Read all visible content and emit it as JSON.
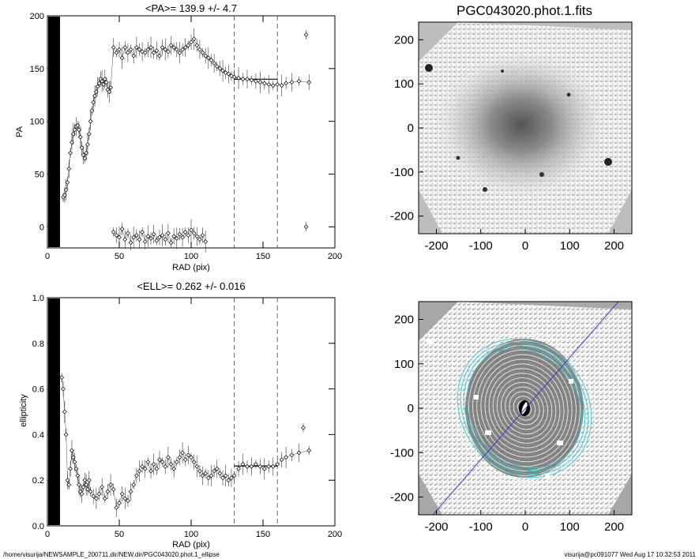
{
  "footer": {
    "path": "/home/visurija/NEWSAMPLE_200711.dir/NEW.dir/PGC043020.phot.1_ellipse",
    "stamp": "visurija@pc091077  Wed Aug 17 10:32:53 2011"
  },
  "chart_data": [
    {
      "type": "scatter",
      "title": "<PA>= 139.9 +/-   4.7",
      "xlabel": "RAD (pix)",
      "ylabel": "PA",
      "xlim": [
        0,
        200
      ],
      "ylim": [
        -20,
        200
      ],
      "xticks": [
        "0",
        "50",
        "100",
        "150",
        "200"
      ],
      "yticks": [
        "0",
        "50",
        "100",
        "150",
        "200"
      ],
      "ytick_values": [
        0,
        50,
        100,
        150,
        200
      ],
      "vlines": [
        130,
        160
      ],
      "mean_line": {
        "x": [
          130,
          160
        ],
        "y": 139.9
      },
      "series": [
        {
          "x": [
            11,
            12,
            13,
            14,
            15,
            16,
            17,
            18,
            19,
            20,
            21,
            22,
            23,
            24,
            25,
            26,
            27,
            28,
            29,
            30,
            31,
            32,
            33,
            34,
            35,
            36,
            37,
            38,
            39,
            40,
            41,
            42,
            43,
            44,
            46,
            48,
            50,
            52,
            54,
            56,
            58,
            60,
            62,
            64,
            66,
            68,
            70,
            72,
            74,
            76,
            78,
            80,
            82,
            84,
            86,
            88,
            90,
            92,
            94,
            96,
            98,
            100,
            102,
            104,
            106,
            108,
            110,
            112,
            114,
            116,
            118,
            120,
            122,
            124,
            126,
            128,
            130,
            133,
            136,
            139,
            142,
            145,
            148,
            151,
            154,
            157,
            160,
            163,
            166,
            170,
            175,
            182
          ],
          "y": [
            28,
            30,
            35,
            42,
            55,
            70,
            80,
            88,
            92,
            95,
            96,
            92,
            85,
            75,
            68,
            65,
            70,
            78,
            88,
            100,
            110,
            118,
            124,
            128,
            133,
            136,
            140,
            138,
            135,
            140,
            137,
            130,
            128,
            132,
            170,
            165,
            168,
            160,
            170,
            165,
            168,
            162,
            170,
            168,
            166,
            165,
            168,
            170,
            165,
            167,
            162,
            170,
            168,
            166,
            172,
            170,
            168,
            165,
            168,
            170,
            172,
            175,
            178,
            172,
            168,
            165,
            162,
            160,
            158,
            155,
            152,
            150,
            148,
            146,
            145,
            143,
            142,
            141,
            140,
            140,
            139,
            138,
            137,
            136,
            135,
            134,
            135,
            134,
            136,
            137,
            138,
            137
          ]
        },
        {
          "x": [
            46,
            48,
            50,
            52,
            54,
            56,
            58,
            60,
            62,
            64,
            66,
            68,
            70,
            72,
            74,
            76,
            78,
            80,
            82,
            84,
            86,
            88,
            90,
            92,
            94,
            96,
            98,
            100,
            102,
            104,
            106,
            108,
            110
          ],
          "y": [
            -5,
            -8,
            -10,
            -2,
            -12,
            -6,
            -15,
            -10,
            -8,
            -12,
            -5,
            -14,
            -9,
            -11,
            -7,
            -13,
            -10,
            -8,
            -12,
            -6,
            -15,
            -9,
            -11,
            -7,
            -10,
            -5,
            -8,
            -3,
            -6,
            -9,
            -12,
            -8,
            -14
          ]
        },
        {
          "x": [
            180
          ],
          "y": [
            182
          ]
        },
        {
          "x": [
            180
          ],
          "y": [
            0
          ]
        }
      ]
    },
    {
      "type": "scatter",
      "title": "<ELL>= 0.262 +/-  0.016",
      "xlabel": "RAD (pix)",
      "ylabel": "ellipticity",
      "xlim": [
        0,
        200
      ],
      "ylim": [
        0,
        1
      ],
      "xticks": [
        "0",
        "50",
        "100",
        "150",
        "200"
      ],
      "yticks": [
        "0.0",
        "0.2",
        "0.4",
        "0.6",
        "0.8",
        "1.0"
      ],
      "ytick_values": [
        0,
        0.2,
        0.4,
        0.6,
        0.8,
        1.0
      ],
      "vlines": [
        130,
        160
      ],
      "mean_line": {
        "x": [
          130,
          160
        ],
        "y": 0.262
      },
      "series": [
        {
          "x": [
            10,
            11,
            12,
            13,
            14,
            15,
            16,
            17,
            18,
            19,
            20,
            21,
            22,
            23,
            24,
            25,
            26,
            27,
            28,
            29,
            30,
            32,
            34,
            36,
            38,
            40,
            42,
            44,
            46,
            48,
            50,
            52,
            54,
            56,
            58,
            60,
            62,
            64,
            66,
            68,
            70,
            72,
            74,
            76,
            78,
            80,
            82,
            84,
            86,
            88,
            90,
            92,
            94,
            96,
            98,
            100,
            102,
            104,
            106,
            108,
            110,
            112,
            114,
            116,
            118,
            120,
            122,
            124,
            126,
            128,
            130,
            133,
            136,
            139,
            142,
            145,
            148,
            151,
            154,
            157,
            160,
            163,
            166,
            170,
            175,
            182
          ],
          "y": [
            0.65,
            0.6,
            0.5,
            0.4,
            0.2,
            0.18,
            0.25,
            0.33,
            0.3,
            0.28,
            0.25,
            0.22,
            0.18,
            0.15,
            0.14,
            0.17,
            0.2,
            0.18,
            0.16,
            0.2,
            0.15,
            0.13,
            0.12,
            0.14,
            0.17,
            0.12,
            0.15,
            0.18,
            0.16,
            0.08,
            0.1,
            0.14,
            0.12,
            0.11,
            0.15,
            0.18,
            0.22,
            0.24,
            0.26,
            0.25,
            0.28,
            0.24,
            0.27,
            0.25,
            0.29,
            0.28,
            0.26,
            0.3,
            0.27,
            0.25,
            0.28,
            0.3,
            0.32,
            0.29,
            0.31,
            0.3,
            0.28,
            0.26,
            0.24,
            0.22,
            0.23,
            0.21,
            0.22,
            0.24,
            0.25,
            0.23,
            0.21,
            0.22,
            0.2,
            0.21,
            0.22,
            0.25,
            0.27,
            0.26,
            0.26,
            0.27,
            0.26,
            0.25,
            0.26,
            0.26,
            0.27,
            0.29,
            0.3,
            0.31,
            0.32,
            0.33
          ]
        },
        {
          "x": [
            178
          ],
          "y": [
            0.43
          ]
        }
      ]
    },
    {
      "type": "heatmap",
      "title": "PGC043020.phot.1.fits",
      "xlim": [
        -240,
        240
      ],
      "ylim": [
        -240,
        240
      ],
      "xticks": [
        "-200",
        "-100",
        "0",
        "100",
        "200"
      ],
      "yticks": [
        "200",
        "100",
        "0",
        "-100",
        "-200"
      ],
      "tick_values": [
        -200,
        -100,
        0,
        100,
        200
      ]
    },
    {
      "type": "heatmap",
      "title": "",
      "xlim": [
        -240,
        240
      ],
      "ylim": [
        -240,
        240
      ],
      "xticks": [
        "-200",
        "-100",
        "0",
        "100",
        "200"
      ],
      "yticks": [
        "200",
        "100",
        "0",
        "-100",
        "-200"
      ],
      "tick_values": [
        -200,
        -100,
        0,
        100,
        200
      ]
    }
  ]
}
